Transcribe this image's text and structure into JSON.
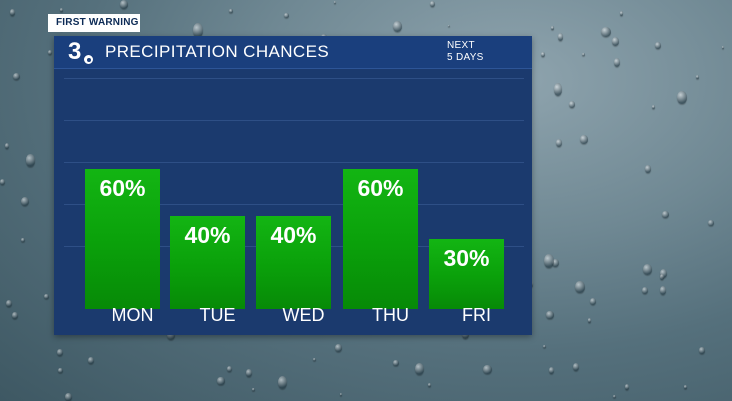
{
  "badge": "FIRST WARNING",
  "logo": {
    "number": "3",
    "icon": "cbs-eye-icon"
  },
  "header": {
    "title": "PRECIPITATION CHANCES",
    "next_line1": "NEXT",
    "next_line2": "5 DAYS"
  },
  "colors": {
    "panel": "#1b3a6e",
    "header": "#1a3f7d",
    "bar": "#0aa00a",
    "text": "#ffffff"
  },
  "chart_data": {
    "type": "bar",
    "title": "PRECIPITATION CHANCES",
    "categories": [
      "MON",
      "TUE",
      "WED",
      "THU",
      "FRI"
    ],
    "values": [
      60,
      40,
      40,
      60,
      30
    ],
    "data_labels": [
      "60%",
      "40%",
      "40%",
      "60%",
      "30%"
    ],
    "unit": "%",
    "ylim": [
      0,
      100
    ],
    "grid": true,
    "legend": "none"
  }
}
